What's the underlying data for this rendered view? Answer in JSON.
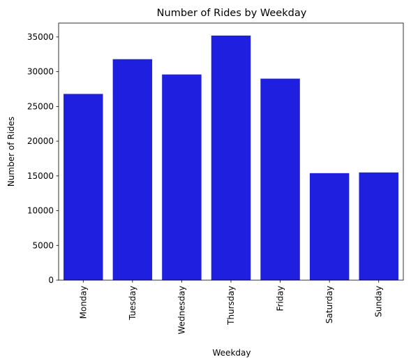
{
  "chart_data": {
    "type": "bar",
    "title": "Number of Rides by Weekday",
    "xlabel": "Weekday",
    "ylabel": "Number of Rides",
    "categories": [
      "Monday",
      "Tuesday",
      "Wednesday",
      "Thursday",
      "Friday",
      "Saturday",
      "Sunday"
    ],
    "values": [
      26800,
      31800,
      29600,
      35200,
      29000,
      15400,
      15500
    ],
    "ylim": [
      0,
      37000
    ],
    "yticks": [
      0,
      5000,
      10000,
      15000,
      20000,
      25000,
      30000,
      35000
    ],
    "bar_color": "#1f1fe0",
    "grid": false,
    "legend": "none"
  }
}
